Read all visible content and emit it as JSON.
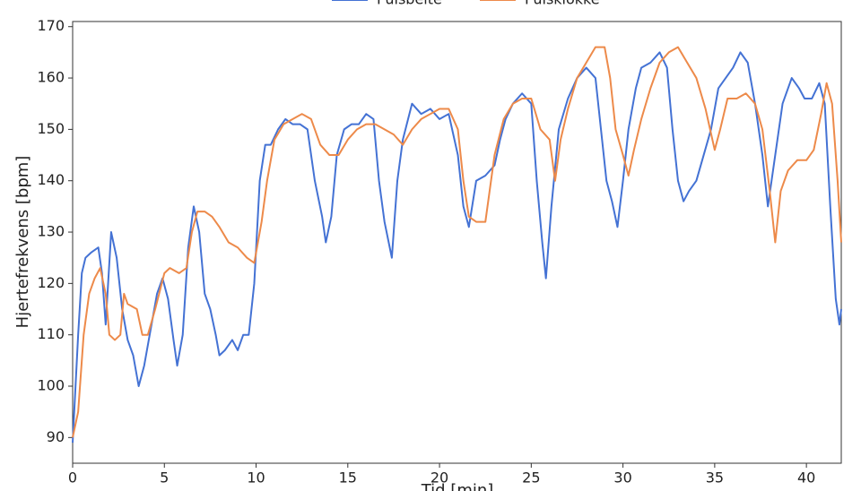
{
  "chart_data": {
    "type": "line",
    "xlabel": "Tid [min]",
    "ylabel": "Hjertefrekvens [bpm]",
    "xlim": [
      0,
      41.9
    ],
    "ylim": [
      85,
      171
    ],
    "xticks": [
      0,
      5,
      10,
      15,
      20,
      25,
      30,
      35,
      40
    ],
    "yticks": [
      90,
      100,
      110,
      120,
      130,
      140,
      150,
      160,
      170
    ],
    "grid": false,
    "legend": "top",
    "series": [
      {
        "name": "Pulsbelte",
        "color": "#4472d4",
        "x": [
          0,
          0.3,
          0.5,
          0.7,
          1,
          1.4,
          1.6,
          1.8,
          2.1,
          2.4,
          2.7,
          3,
          3.3,
          3.6,
          3.9,
          4.2,
          4.6,
          4.9,
          5.2,
          5.5,
          5.7,
          6.0,
          6.3,
          6.6,
          6.9,
          7.2,
          7.5,
          7.8,
          8.0,
          8.3,
          8.7,
          9.0,
          9.3,
          9.6,
          9.9,
          10.2,
          10.5,
          10.8,
          11.2,
          11.6,
          12.0,
          12.4,
          12.8,
          13.2,
          13.6,
          13.8,
          14.1,
          14.4,
          14.8,
          15.2,
          15.6,
          16.0,
          16.4,
          16.7,
          17.0,
          17.4,
          17.7,
          18.0,
          18.5,
          19.0,
          19.5,
          20.0,
          20.5,
          21.0,
          21.3,
          21.6,
          22.0,
          22.5,
          23.0,
          23.3,
          23.6,
          24.0,
          24.5,
          25.0,
          25.3,
          25.6,
          25.8,
          26.1,
          26.5,
          27.0,
          27.5,
          28.0,
          28.5,
          28.8,
          29.1,
          29.4,
          29.7,
          30.0,
          30.3,
          30.7,
          31.0,
          31.5,
          32.0,
          32.4,
          32.7,
          33.0,
          33.3,
          33.6,
          34.0,
          34.4,
          34.8,
          35.2,
          35.6,
          36.0,
          36.4,
          36.8,
          37.2,
          37.6,
          37.9,
          38.3,
          38.7,
          39.2,
          39.6,
          39.9,
          40.3,
          40.7,
          41.0,
          41.3,
          41.6,
          41.8,
          41.9
        ],
        "values": [
          89,
          110,
          122,
          125,
          126,
          127,
          122,
          112,
          130,
          125,
          115,
          109,
          106,
          100,
          104,
          110,
          118,
          121,
          117,
          109,
          104,
          110,
          127,
          135,
          130,
          118,
          115,
          110,
          106,
          107,
          109,
          107,
          110,
          110,
          120,
          140,
          147,
          147,
          150,
          152,
          151,
          151,
          150,
          140,
          133,
          128,
          133,
          145,
          150,
          151,
          151,
          153,
          152,
          140,
          132,
          125,
          140,
          148,
          155,
          153,
          154,
          152,
          153,
          145,
          135,
          131,
          140,
          141,
          143,
          148,
          152,
          155,
          157,
          155,
          140,
          128,
          121,
          135,
          150,
          156,
          160,
          162,
          160,
          150,
          140,
          136,
          131,
          140,
          150,
          158,
          162,
          163,
          165,
          162,
          150,
          140,
          136,
          138,
          140,
          145,
          150,
          158,
          160,
          162,
          165,
          163,
          155,
          145,
          135,
          145,
          155,
          160,
          158,
          156,
          156,
          159,
          155,
          135,
          117,
          112,
          115
        ]
      },
      {
        "name": "Pulsklokke",
        "color": "#ed8a4a",
        "x": [
          0,
          0.3,
          0.6,
          0.9,
          1.2,
          1.5,
          1.8,
          2.0,
          2.3,
          2.6,
          2.8,
          3.0,
          3.5,
          3.8,
          4.1,
          4.5,
          5.0,
          5.3,
          5.8,
          6.2,
          6.5,
          6.8,
          7.2,
          7.6,
          8.0,
          8.5,
          9.0,
          9.5,
          9.9,
          10.3,
          10.6,
          11.0,
          11.5,
          12.0,
          12.5,
          13.0,
          13.5,
          14.0,
          14.5,
          15.0,
          15.5,
          16.0,
          16.5,
          17.0,
          17.5,
          18.0,
          18.5,
          19.0,
          19.5,
          20.0,
          20.5,
          21.0,
          21.3,
          21.6,
          22.0,
          22.5,
          23.0,
          23.5,
          24.0,
          24.5,
          25.0,
          25.5,
          26.0,
          26.3,
          26.6,
          27.0,
          27.5,
          28.0,
          28.5,
          29.0,
          29.3,
          29.6,
          30.0,
          30.3,
          30.6,
          31.0,
          31.5,
          32.0,
          32.5,
          33.0,
          33.5,
          34.0,
          34.5,
          35.0,
          35.3,
          35.7,
          36.2,
          36.7,
          37.2,
          37.6,
          38.0,
          38.3,
          38.6,
          39.0,
          39.5,
          40.0,
          40.4,
          40.8,
          41.1,
          41.4,
          41.7,
          41.9
        ],
        "values": [
          90,
          95,
          110,
          118,
          121,
          123,
          118,
          110,
          109,
          110,
          118,
          116,
          115,
          110,
          110,
          115,
          122,
          123,
          122,
          123,
          130,
          134,
          134,
          133,
          131,
          128,
          127,
          125,
          124,
          132,
          140,
          148,
          151,
          152,
          153,
          152,
          147,
          145,
          145,
          148,
          150,
          151,
          151,
          150,
          149,
          147,
          150,
          152,
          153,
          154,
          154,
          150,
          140,
          133,
          132,
          132,
          145,
          152,
          155,
          156,
          156,
          150,
          148,
          140,
          148,
          154,
          160,
          163,
          166,
          166,
          160,
          150,
          145,
          141,
          146,
          152,
          158,
          163,
          165,
          166,
          163,
          160,
          154,
          146,
          150,
          156,
          156,
          157,
          155,
          150,
          138,
          128,
          138,
          142,
          144,
          144,
          146,
          153,
          159,
          155,
          140,
          128
        ]
      }
    ]
  }
}
